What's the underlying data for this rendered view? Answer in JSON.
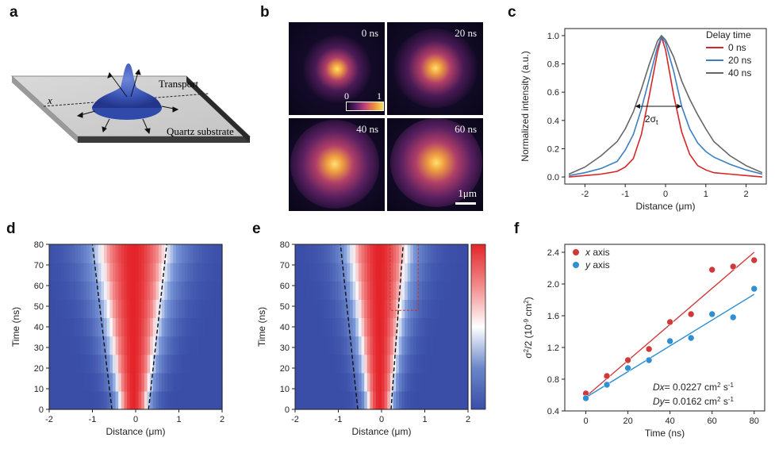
{
  "panel_labels": {
    "a": "a",
    "b": "b",
    "c": "c",
    "d": "d",
    "e": "e",
    "f": "f"
  },
  "panel_a": {
    "axis_label": "x",
    "transport_label": "Transport",
    "substrate_label": "Quartz substrate"
  },
  "panel_b": {
    "frames": [
      {
        "time": "0 ns",
        "spot_spread": 0.18
      },
      {
        "time": "20 ns",
        "spot_spread": 0.26
      },
      {
        "time": "40 ns",
        "spot_spread": 0.34
      },
      {
        "time": "60 ns",
        "spot_spread": 0.42
      }
    ],
    "colorbar": {
      "min": "0",
      "max": "1"
    },
    "scale_bar_label": "1μm",
    "colors": {
      "low": "#0d0820",
      "mid": "#8a2c6e",
      "high": "#f4e05a"
    }
  },
  "chart_data": [
    {
      "id": "c",
      "type": "line",
      "xlabel": "Distance (μm)",
      "ylabel": "Normalized intensity (a.u.)",
      "xlim": [
        -2.5,
        2.5
      ],
      "ylim": [
        -0.05,
        1.05
      ],
      "xticks": [
        -2,
        -1,
        0,
        1,
        2
      ],
      "yticks": [
        0.0,
        0.2,
        0.4,
        0.6,
        0.8,
        1.0
      ],
      "legend_title": "Delay time",
      "legend_position": "top-right",
      "annotation": "2σt",
      "series": [
        {
          "name": "0 ns",
          "color": "#d62728",
          "x": [
            -2.4,
            -2.0,
            -1.6,
            -1.2,
            -1.0,
            -0.8,
            -0.6,
            -0.4,
            -0.2,
            -0.1,
            0.0,
            0.2,
            0.4,
            0.6,
            0.8,
            1.0,
            1.2,
            1.6,
            2.0,
            2.4
          ],
          "y": [
            0.0,
            0.01,
            0.02,
            0.04,
            0.07,
            0.13,
            0.3,
            0.58,
            0.88,
            0.99,
            0.9,
            0.58,
            0.32,
            0.16,
            0.08,
            0.05,
            0.03,
            0.02,
            0.01,
            0.0
          ]
        },
        {
          "name": "20 ns",
          "color": "#3a7fc1",
          "x": [
            -2.4,
            -2.0,
            -1.6,
            -1.2,
            -1.0,
            -0.8,
            -0.6,
            -0.4,
            -0.2,
            -0.1,
            0.0,
            0.2,
            0.4,
            0.6,
            0.8,
            1.0,
            1.2,
            1.6,
            2.0,
            2.4
          ],
          "y": [
            0.01,
            0.03,
            0.06,
            0.11,
            0.19,
            0.3,
            0.48,
            0.7,
            0.92,
            0.99,
            0.95,
            0.75,
            0.5,
            0.34,
            0.24,
            0.18,
            0.14,
            0.09,
            0.05,
            0.02
          ]
        },
        {
          "name": "40 ns",
          "color": "#666666",
          "x": [
            -2.4,
            -2.0,
            -1.6,
            -1.2,
            -1.0,
            -0.8,
            -0.6,
            -0.4,
            -0.2,
            -0.1,
            0.0,
            0.2,
            0.4,
            0.6,
            0.8,
            1.0,
            1.2,
            1.6,
            2.0,
            2.4
          ],
          "y": [
            0.02,
            0.07,
            0.15,
            0.25,
            0.34,
            0.46,
            0.62,
            0.8,
            0.96,
            1.0,
            0.97,
            0.85,
            0.68,
            0.55,
            0.44,
            0.34,
            0.25,
            0.15,
            0.08,
            0.03
          ]
        }
      ]
    },
    {
      "id": "d",
      "type": "heatmap",
      "xlabel": "Distance (μm)",
      "ylabel": "Time (ns)",
      "xlim": [
        -2,
        2
      ],
      "ylim": [
        0,
        80
      ],
      "xticks": [
        -2,
        -1,
        0,
        1,
        2
      ],
      "yticks": [
        0,
        10,
        20,
        30,
        40,
        50,
        60,
        70,
        80
      ],
      "times": [
        0,
        10,
        20,
        30,
        40,
        50,
        60,
        70,
        80
      ],
      "widths": [
        0.28,
        0.33,
        0.38,
        0.43,
        0.48,
        0.53,
        0.58,
        0.63,
        0.68
      ],
      "boundary_lines": [
        {
          "x0": -0.55,
          "y0": 0,
          "x1": -1.0,
          "y1": 80
        },
        {
          "x0": 0.3,
          "y0": 0,
          "x1": 0.72,
          "y1": 80
        }
      ]
    },
    {
      "id": "e",
      "type": "heatmap",
      "xlabel": "Distance (μm)",
      "ylabel": "Time (ns)",
      "xlim": [
        -2,
        2
      ],
      "ylim": [
        0,
        80
      ],
      "xticks": [
        -2,
        -1,
        0,
        1,
        2
      ],
      "yticks": [
        0,
        10,
        20,
        30,
        40,
        50,
        60,
        70,
        80
      ],
      "times": [
        0,
        10,
        20,
        30,
        40,
        50,
        60,
        70,
        80
      ],
      "widths": [
        0.24,
        0.28,
        0.32,
        0.36,
        0.4,
        0.44,
        0.48,
        0.52,
        0.56
      ],
      "boundary_lines": [
        {
          "x0": -0.55,
          "y0": 0,
          "x1": -0.95,
          "y1": 80
        },
        {
          "x0": 0.22,
          "y0": 0,
          "x1": 0.5,
          "y1": 80
        }
      ],
      "highlight_box": {
        "x0": 0.2,
        "x1": 0.85,
        "y0": 48,
        "y1": 80
      },
      "colorbar": {
        "colors": [
          "#3a4ea8",
          "#6a87c9",
          "#ffffff",
          "#f28a8a",
          "#e3262a"
        ]
      }
    },
    {
      "id": "f",
      "type": "scatter",
      "xlabel": "Time (ns)",
      "ylabel": "σ2/2 (10-9 cm2)",
      "xlim": [
        -10,
        85
      ],
      "ylim": [
        0.4,
        2.5
      ],
      "xticks": [
        0,
        20,
        40,
        60,
        80
      ],
      "yticks": [
        0.4,
        0.8,
        1.2,
        1.6,
        2.0,
        2.4
      ],
      "legend_position": "top-left",
      "annotations": [
        {
          "lead": "Dx",
          "value": "= 0.0227 cm",
          "sup": "2",
          "tail": " s",
          "tail_sup": "-1"
        },
        {
          "lead": "Dy",
          "value": "= 0.0162 cm",
          "sup": "2",
          "tail": " s",
          "tail_sup": "-1"
        }
      ],
      "series": [
        {
          "name": "x axis",
          "color": "#d0393a",
          "x": [
            0,
            10,
            20,
            30,
            40,
            50,
            60,
            70,
            80
          ],
          "y": [
            0.62,
            0.84,
            1.04,
            1.18,
            1.52,
            1.62,
            2.18,
            2.22,
            2.3
          ],
          "fit": {
            "x0": 0,
            "y0": 0.58,
            "x1": 80,
            "y1": 2.4
          }
        },
        {
          "name": "y axis",
          "color": "#2f8fd1",
          "x": [
            0,
            10,
            20,
            30,
            40,
            50,
            60,
            70,
            80
          ],
          "y": [
            0.56,
            0.73,
            0.94,
            1.04,
            1.28,
            1.32,
            1.62,
            1.58,
            1.94
          ],
          "fit": {
            "x0": 0,
            "y0": 0.57,
            "x1": 80,
            "y1": 1.87
          }
        }
      ]
    }
  ]
}
